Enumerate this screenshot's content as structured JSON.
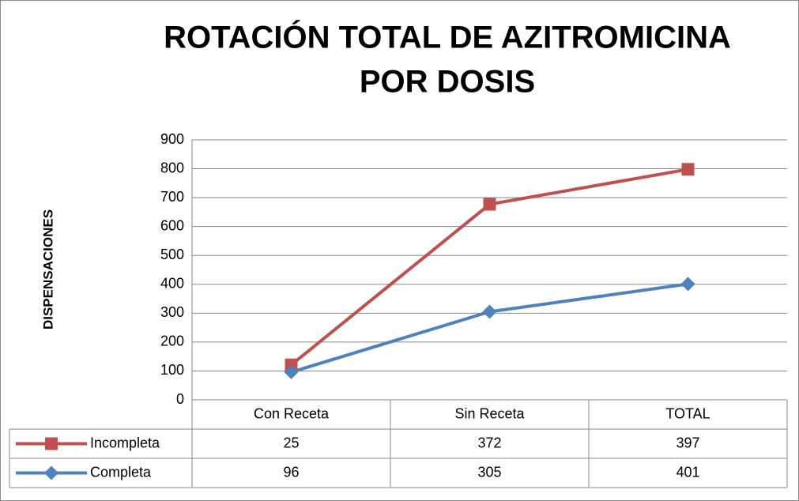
{
  "chart_data": {
    "type": "line",
    "stacked": true,
    "title": [
      "ROTACIÓN TOTAL DE AZITROMICINA",
      "POR DOSIS"
    ],
    "y_label": "DISPENSACIONES",
    "categories": [
      "Con Receta",
      "Sin Receta",
      "TOTAL"
    ],
    "series": [
      {
        "name": "Incompleta",
        "color": "#c0504d",
        "marker": "square",
        "values": [
          25,
          372,
          397
        ]
      },
      {
        "name": "Completa",
        "color": "#4f81bd",
        "marker": "diamond",
        "values": [
          96,
          305,
          401
        ]
      }
    ],
    "ylim": [
      0,
      900
    ],
    "yticks": [
      0,
      100,
      200,
      300,
      400,
      500,
      600,
      700,
      800,
      900
    ],
    "grid": true,
    "data_table": true
  }
}
